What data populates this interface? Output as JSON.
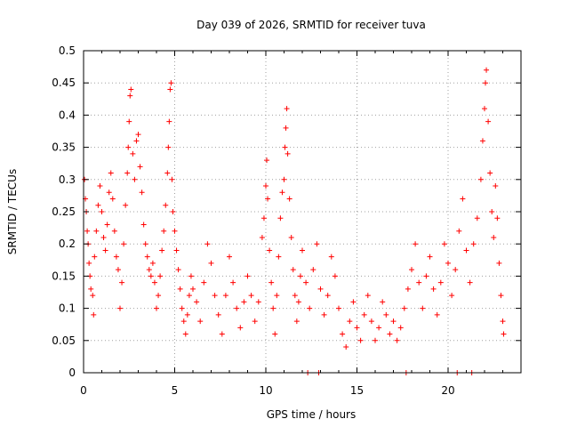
{
  "chart_data": {
    "type": "scatter",
    "title": "Day 039 of 2026, SRMTID for receiver tuva",
    "xlabel": "GPS time / hours",
    "ylabel": "SRMTID / TECUs",
    "xlim": [
      0,
      24
    ],
    "ylim": [
      0,
      0.5
    ],
    "xticks": [
      0,
      5,
      10,
      15,
      20
    ],
    "xtick_labels": [
      "0",
      "5",
      "10",
      "15",
      "20"
    ],
    "yticks": [
      0,
      0.05,
      0.1,
      0.15,
      0.2,
      0.25,
      0.3,
      0.35,
      0.4,
      0.45,
      0.5
    ],
    "ytick_labels": [
      "0",
      "0.05",
      "0.1",
      "0.15",
      "0.2",
      "0.25",
      "0.3",
      "0.35",
      "0.4",
      "0.45",
      "0.5"
    ],
    "grid": true,
    "marker": "+",
    "color": "#ff0000",
    "series": [
      {
        "name": "SRMTID",
        "points": [
          [
            0.05,
            0.3
          ],
          [
            0.1,
            0.27
          ],
          [
            0.15,
            0.25
          ],
          [
            0.2,
            0.22
          ],
          [
            0.25,
            0.2
          ],
          [
            0.3,
            0.17
          ],
          [
            0.35,
            0.15
          ],
          [
            0.4,
            0.13
          ],
          [
            0.5,
            0.12
          ],
          [
            0.55,
            0.09
          ],
          [
            0.6,
            0.18
          ],
          [
            0.7,
            0.22
          ],
          [
            0.8,
            0.26
          ],
          [
            0.9,
            0.29
          ],
          [
            1.0,
            0.25
          ],
          [
            1.1,
            0.21
          ],
          [
            1.2,
            0.19
          ],
          [
            1.3,
            0.23
          ],
          [
            1.4,
            0.28
          ],
          [
            1.5,
            0.31
          ],
          [
            1.6,
            0.27
          ],
          [
            1.7,
            0.22
          ],
          [
            1.8,
            0.18
          ],
          [
            1.9,
            0.16
          ],
          [
            2.0,
            0.1
          ],
          [
            2.1,
            0.14
          ],
          [
            2.2,
            0.2
          ],
          [
            2.3,
            0.26
          ],
          [
            2.4,
            0.31
          ],
          [
            2.45,
            0.35
          ],
          [
            2.5,
            0.39
          ],
          [
            2.55,
            0.43
          ],
          [
            2.6,
            0.44
          ],
          [
            2.7,
            0.34
          ],
          [
            2.8,
            0.3
          ],
          [
            2.9,
            0.36
          ],
          [
            3.0,
            0.37
          ],
          [
            3.1,
            0.32
          ],
          [
            3.2,
            0.28
          ],
          [
            3.3,
            0.23
          ],
          [
            3.4,
            0.2
          ],
          [
            3.5,
            0.18
          ],
          [
            3.6,
            0.16
          ],
          [
            3.7,
            0.15
          ],
          [
            3.8,
            0.17
          ],
          [
            3.9,
            0.14
          ],
          [
            4.0,
            0.1
          ],
          [
            4.1,
            0.12
          ],
          [
            4.2,
            0.15
          ],
          [
            4.3,
            0.19
          ],
          [
            4.4,
            0.22
          ],
          [
            4.5,
            0.26
          ],
          [
            4.6,
            0.31
          ],
          [
            4.65,
            0.35
          ],
          [
            4.7,
            0.39
          ],
          [
            4.75,
            0.44
          ],
          [
            4.8,
            0.45
          ],
          [
            4.85,
            0.3
          ],
          [
            4.9,
            0.25
          ],
          [
            5.0,
            0.22
          ],
          [
            5.1,
            0.19
          ],
          [
            5.2,
            0.16
          ],
          [
            5.3,
            0.13
          ],
          [
            5.4,
            0.1
          ],
          [
            5.5,
            0.08
          ],
          [
            5.6,
            0.06
          ],
          [
            5.7,
            0.09
          ],
          [
            5.8,
            0.12
          ],
          [
            5.9,
            0.15
          ],
          [
            6.0,
            0.13
          ],
          [
            6.2,
            0.11
          ],
          [
            6.4,
            0.08
          ],
          [
            6.6,
            0.14
          ],
          [
            6.8,
            0.2
          ],
          [
            7.0,
            0.17
          ],
          [
            7.2,
            0.12
          ],
          [
            7.4,
            0.09
          ],
          [
            7.6,
            0.06
          ],
          [
            7.8,
            0.12
          ],
          [
            8.0,
            0.18
          ],
          [
            8.2,
            0.14
          ],
          [
            8.4,
            0.1
          ],
          [
            8.6,
            0.07
          ],
          [
            8.8,
            0.11
          ],
          [
            9.0,
            0.15
          ],
          [
            9.2,
            0.12
          ],
          [
            9.4,
            0.08
          ],
          [
            9.6,
            0.11
          ],
          [
            9.8,
            0.21
          ],
          [
            9.9,
            0.24
          ],
          [
            10.0,
            0.29
          ],
          [
            10.05,
            0.33
          ],
          [
            10.1,
            0.27
          ],
          [
            10.2,
            0.19
          ],
          [
            10.3,
            0.14
          ],
          [
            10.4,
            0.1
          ],
          [
            10.5,
            0.06
          ],
          [
            10.6,
            0.12
          ],
          [
            10.7,
            0.18
          ],
          [
            10.8,
            0.24
          ],
          [
            10.9,
            0.28
          ],
          [
            11.0,
            0.3
          ],
          [
            11.05,
            0.35
          ],
          [
            11.1,
            0.38
          ],
          [
            11.15,
            0.41
          ],
          [
            11.2,
            0.34
          ],
          [
            11.3,
            0.27
          ],
          [
            11.4,
            0.21
          ],
          [
            11.5,
            0.16
          ],
          [
            11.6,
            0.12
          ],
          [
            11.7,
            0.08
          ],
          [
            11.8,
            0.11
          ],
          [
            11.9,
            0.15
          ],
          [
            12.0,
            0.19
          ],
          [
            12.2,
            0.14
          ],
          [
            12.4,
            0.1
          ],
          [
            12.6,
            0.16
          ],
          [
            12.8,
            0.2
          ],
          [
            13.0,
            0.13
          ],
          [
            13.2,
            0.09
          ],
          [
            13.4,
            0.12
          ],
          [
            13.6,
            0.18
          ],
          [
            13.8,
            0.15
          ],
          [
            14.0,
            0.1
          ],
          [
            14.2,
            0.06
          ],
          [
            14.4,
            0.04
          ],
          [
            14.6,
            0.08
          ],
          [
            14.8,
            0.11
          ],
          [
            15.0,
            0.07
          ],
          [
            15.2,
            0.05
          ],
          [
            15.4,
            0.09
          ],
          [
            15.6,
            0.12
          ],
          [
            15.8,
            0.08
          ],
          [
            16.0,
            0.05
          ],
          [
            16.2,
            0.07
          ],
          [
            16.4,
            0.11
          ],
          [
            16.6,
            0.09
          ],
          [
            16.8,
            0.06
          ],
          [
            17.0,
            0.08
          ],
          [
            17.2,
            0.05
          ],
          [
            17.4,
            0.07
          ],
          [
            17.6,
            0.1
          ],
          [
            17.8,
            0.13
          ],
          [
            18.0,
            0.16
          ],
          [
            18.2,
            0.2
          ],
          [
            18.4,
            0.14
          ],
          [
            18.6,
            0.1
          ],
          [
            18.8,
            0.15
          ],
          [
            19.0,
            0.18
          ],
          [
            19.2,
            0.13
          ],
          [
            19.4,
            0.09
          ],
          [
            19.6,
            0.14
          ],
          [
            19.8,
            0.2
          ],
          [
            20.0,
            0.17
          ],
          [
            20.2,
            0.12
          ],
          [
            20.4,
            0.16
          ],
          [
            20.6,
            0.22
          ],
          [
            20.8,
            0.27
          ],
          [
            21.0,
            0.19
          ],
          [
            21.2,
            0.14
          ],
          [
            21.4,
            0.2
          ],
          [
            21.6,
            0.24
          ],
          [
            21.8,
            0.3
          ],
          [
            21.9,
            0.36
          ],
          [
            22.0,
            0.41
          ],
          [
            22.05,
            0.45
          ],
          [
            22.1,
            0.47
          ],
          [
            22.2,
            0.39
          ],
          [
            22.3,
            0.31
          ],
          [
            22.4,
            0.25
          ],
          [
            22.5,
            0.21
          ],
          [
            22.6,
            0.29
          ],
          [
            22.7,
            0.24
          ],
          [
            22.8,
            0.17
          ],
          [
            22.9,
            0.12
          ],
          [
            23.0,
            0.08
          ],
          [
            23.05,
            0.06
          ]
        ]
      }
    ],
    "zero_points_x": [
      12.3,
      12.9,
      17.7,
      20.5,
      21.3
    ]
  }
}
